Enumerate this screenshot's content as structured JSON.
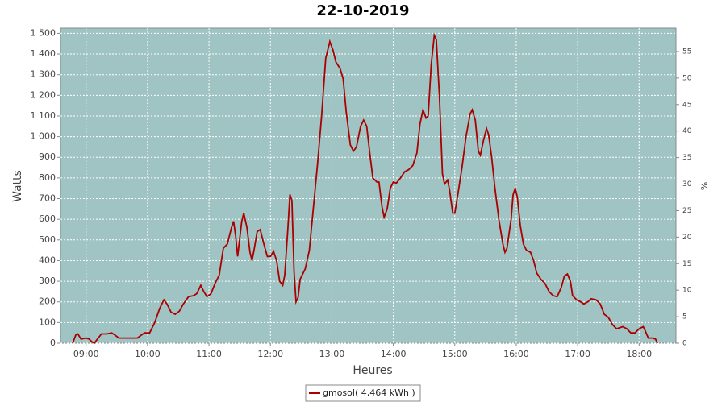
{
  "chart_data": {
    "type": "line",
    "title": "22-10-2019",
    "xlabel": "Heures",
    "ylabel": "Watts",
    "y2label": "%",
    "x": [
      "08:47",
      "08:50",
      "08:52",
      "08:55",
      "09:00",
      "09:03",
      "09:06",
      "09:08",
      "09:11",
      "09:15",
      "09:20",
      "09:25",
      "09:28",
      "09:32",
      "09:40",
      "09:50",
      "09:57",
      "10:02",
      "10:07",
      "10:12",
      "10:16",
      "10:19",
      "10:23",
      "10:27",
      "10:31",
      "10:35",
      "10:40",
      "10:45",
      "10:48",
      "10:52",
      "10:55",
      "10:58",
      "11:02",
      "11:06",
      "11:10",
      "11:14",
      "11:18",
      "11:22",
      "11:24",
      "11:26",
      "11:28",
      "11:32",
      "11:34",
      "11:37",
      "11:40",
      "11:42",
      "11:44",
      "11:47",
      "11:50",
      "11:53",
      "11:57",
      "12:00",
      "12:03",
      "12:06",
      "12:09",
      "12:12",
      "12:14",
      "12:17",
      "12:19",
      "12:21",
      "12:23",
      "12:25",
      "12:27",
      "12:29",
      "12:32",
      "12:34",
      "12:38",
      "12:42",
      "12:46",
      "12:50",
      "12:54",
      "12:58",
      "13:01",
      "13:04",
      "13:08",
      "13:11",
      "13:14",
      "13:18",
      "13:21",
      "13:24",
      "13:28",
      "13:31",
      "13:34",
      "13:37",
      "13:40",
      "13:44",
      "13:46",
      "13:49",
      "13:51",
      "13:54",
      "13:57",
      "14:00",
      "14:03",
      "14:07",
      "14:11",
      "14:15",
      "14:19",
      "14:23",
      "14:26",
      "14:29",
      "14:32",
      "14:34",
      "14:37",
      "14:40",
      "14:42",
      "14:45",
      "14:48",
      "14:50",
      "14:53",
      "14:55",
      "14:58",
      "15:00",
      "15:03",
      "15:07",
      "15:11",
      "15:15",
      "15:17",
      "15:20",
      "15:23",
      "15:25",
      "15:28",
      "15:31",
      "15:33",
      "15:36",
      "15:39",
      "15:43",
      "15:47",
      "15:49",
      "15:51",
      "15:55",
      "15:57",
      "15:59",
      "16:01",
      "16:04",
      "16:07",
      "16:10",
      "16:14",
      "16:17",
      "16:20",
      "16:24",
      "16:28",
      "16:32",
      "16:36",
      "16:40",
      "16:44",
      "16:47",
      "16:50",
      "16:53",
      "16:55",
      "16:59",
      "17:03",
      "17:06",
      "17:10",
      "17:13",
      "17:18",
      "17:22",
      "17:26",
      "17:30",
      "17:34",
      "17:38",
      "17:44",
      "17:48",
      "17:52",
      "17:56",
      "18:00",
      "18:04",
      "18:06",
      "18:09",
      "18:13",
      "18:16",
      "18:18"
    ],
    "series": [
      {
        "name": "gmosol( 4,464 kWh )",
        "color": "#aa0000",
        "values": [
          0,
          40,
          45,
          20,
          25,
          20,
          5,
          0,
          20,
          45,
          45,
          50,
          40,
          25,
          25,
          25,
          50,
          50,
          100,
          170,
          210,
          190,
          150,
          140,
          155,
          190,
          225,
          230,
          240,
          280,
          250,
          225,
          240,
          290,
          330,
          460,
          480,
          560,
          590,
          520,
          420,
          590,
          630,
          560,
          440,
          400,
          450,
          540,
          550,
          490,
          420,
          420,
          445,
          400,
          300,
          280,
          330,
          550,
          720,
          690,
          350,
          200,
          220,
          310,
          340,
          360,
          450,
          660,
          870,
          1100,
          1380,
          1460,
          1420,
          1360,
          1330,
          1280,
          1120,
          960,
          930,
          950,
          1050,
          1080,
          1050,
          920,
          800,
          780,
          780,
          660,
          610,
          650,
          750,
          780,
          775,
          800,
          830,
          840,
          860,
          920,
          1060,
          1130,
          1090,
          1100,
          1350,
          1490,
          1470,
          1200,
          820,
          770,
          790,
          740,
          630,
          630,
          720,
          850,
          1000,
          1110,
          1130,
          1080,
          930,
          910,
          980,
          1040,
          1010,
          900,
          760,
          600,
          480,
          440,
          460,
          600,
          720,
          750,
          710,
          570,
          480,
          450,
          440,
          400,
          340,
          310,
          290,
          250,
          230,
          225,
          270,
          325,
          335,
          300,
          230,
          210,
          200,
          190,
          200,
          215,
          210,
          190,
          140,
          125,
          90,
          70,
          80,
          70,
          50,
          50,
          70,
          80,
          60,
          25,
          25,
          20,
          0
        ]
      }
    ],
    "xlim": [
      "08:35",
      "18:36"
    ],
    "xticks": [
      "09:00",
      "10:00",
      "11:00",
      "12:00",
      "13:00",
      "14:00",
      "15:00",
      "16:00",
      "17:00",
      "18:00"
    ],
    "ylim": [
      0,
      1525
    ],
    "yticks": [
      0,
      100,
      200,
      300,
      400,
      500,
      600,
      700,
      800,
      900,
      {
        "value": 1000,
        "label": "1 000"
      },
      {
        "value": 1100,
        "label": "1 100"
      },
      {
        "value": 1200,
        "label": "1 200"
      },
      {
        "value": 1300,
        "label": "1 300"
      },
      {
        "value": 1400,
        "label": "1 400"
      },
      {
        "value": 1500,
        "label": "1 500"
      }
    ],
    "y2lim": [
      0,
      59.4
    ],
    "y2ticks": [
      0,
      5,
      10,
      15,
      20,
      25,
      30,
      35,
      40,
      45,
      50,
      55
    ],
    "grid": true,
    "legend": "bottom"
  }
}
